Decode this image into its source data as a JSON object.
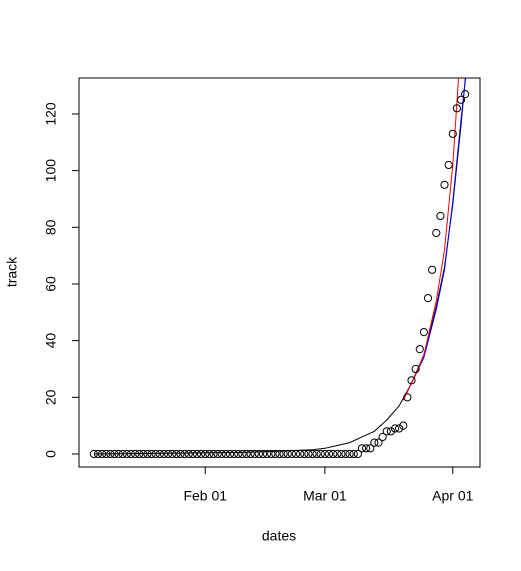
{
  "chart_data": {
    "type": "scatter",
    "xlabel": "dates",
    "ylabel": "track",
    "x": [
      5,
      6,
      7,
      8,
      9,
      10,
      11,
      12,
      13,
      14,
      15,
      16,
      17,
      18,
      19,
      20,
      21,
      22,
      23,
      24,
      25,
      26,
      27,
      28,
      29,
      30,
      31,
      32,
      33,
      34,
      35,
      36,
      37,
      38,
      39,
      40,
      41,
      42,
      43,
      44,
      45,
      46,
      47,
      48,
      49,
      50,
      51,
      52,
      53,
      54,
      55,
      56,
      57,
      58,
      59,
      60,
      61,
      62,
      63,
      64,
      65,
      66,
      67,
      68,
      69,
      70,
      71,
      72,
      73,
      74,
      75,
      76,
      77,
      78,
      79,
      80,
      81,
      82,
      83,
      84,
      85,
      86,
      87,
      88,
      89,
      90,
      91,
      92,
      93,
      94,
      95
    ],
    "values": [
      0,
      0,
      0,
      0,
      0,
      0,
      0,
      0,
      0,
      0,
      0,
      0,
      0,
      0,
      0,
      0,
      0,
      0,
      0,
      0,
      0,
      0,
      0,
      0,
      0,
      0,
      0,
      0,
      0,
      0,
      0,
      0,
      0,
      0,
      0,
      0,
      0,
      0,
      0,
      0,
      0,
      0,
      0,
      0,
      0,
      0,
      0,
      0,
      0,
      0,
      0,
      0,
      0,
      0,
      0,
      0,
      0,
      0,
      0,
      0,
      0,
      0,
      0,
      0,
      0,
      2,
      2,
      2,
      4,
      4,
      6,
      8,
      8,
      9,
      9,
      10,
      20,
      26,
      30,
      37,
      43,
      55,
      65,
      78,
      84,
      95,
      102,
      113,
      122,
      125,
      127
    ],
    "color": "#000000",
    "lines": [
      {
        "color": "#000000",
        "x": [
          5,
          40,
          50,
          58,
          61,
          64,
          67,
          70,
          73,
          76,
          79,
          82,
          85,
          88,
          90,
          92,
          94,
          95.5
        ],
        "values": [
          0,
          0.5,
          1,
          1.5,
          2,
          3,
          4,
          6,
          8,
          12,
          17,
          25,
          35,
          52,
          66,
          88,
          116,
          140
        ]
      },
      {
        "color": "#0000ff",
        "x": [
          80,
          83,
          85,
          88,
          90,
          92,
          94,
          95.5
        ],
        "values": [
          19,
          28,
          34,
          51,
          65,
          89,
          118,
          138
        ]
      },
      {
        "color": "#ff0000",
        "x": [
          80,
          83,
          85,
          88,
          90,
          92,
          93.5
        ],
        "values": [
          19,
          28,
          35,
          54,
          72,
          102,
          135
        ]
      }
    ],
    "xlim": [
      1.4,
      98.6
    ],
    "ylim": [
      -4.6,
      132.7
    ],
    "xticks": [
      {
        "value": 32,
        "label": "Feb 01"
      },
      {
        "value": 61,
        "label": "Mar 01"
      },
      {
        "value": 92,
        "label": "Apr 01"
      }
    ],
    "yticks": [
      0,
      20,
      40,
      60,
      80,
      100,
      120
    ]
  }
}
